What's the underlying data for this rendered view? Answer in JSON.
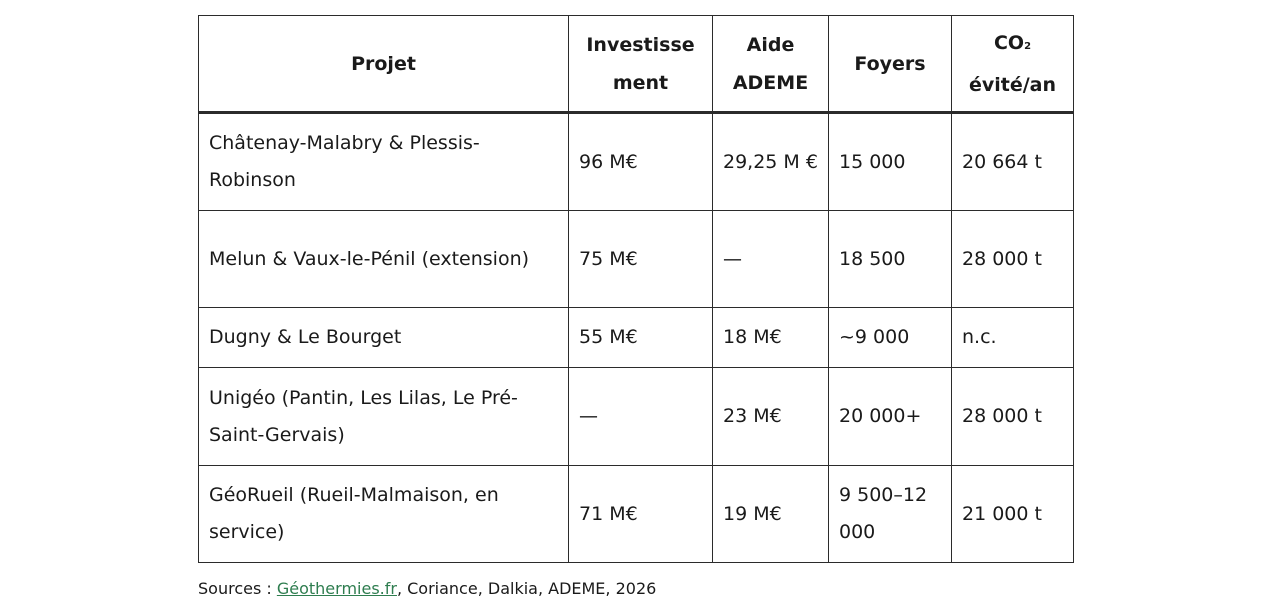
{
  "table": {
    "headers": {
      "project": "Projet",
      "investment_line1": "Investisse",
      "investment_line2": "ment",
      "aid_line1": "Aide",
      "aid_line2": "ADEME",
      "households": "Foyers",
      "co2_main": "CO",
      "co2_sub": "2",
      "co2_line2": "évité/an"
    },
    "rows": [
      {
        "project": "Châtenay-Malabry & Plessis-Robinson",
        "investment": "96 M€",
        "aid": "29,25 M €",
        "households": "15 000",
        "co2": "20 664 t"
      },
      {
        "project": "Melun & Vaux-le-Pénil (extension)",
        "investment": "75 M€",
        "aid": "—",
        "households": "18 500",
        "co2": "28 000 t"
      },
      {
        "project": "Dugny & Le Bourget",
        "investment": "55 M€",
        "aid": "18 M€",
        "households": "~9 000",
        "co2": "n.c."
      },
      {
        "project": "Unigéo (Pantin, Les Lilas, Le Pré-Saint-Gervais)",
        "investment": "—",
        "aid": "23 M€",
        "households": "20 000+",
        "co2": "28 000 t"
      },
      {
        "project": "GéoRueil (Rueil-Malmaison, en service)",
        "investment": "71 M€",
        "aid": "19 M€",
        "households": "9 500–12 000",
        "co2": "21 000 t"
      }
    ]
  },
  "sources": {
    "prefix": "Sources : ",
    "link_text": "Géothermies.fr",
    "suffix": ", Coriance, Dalkia, ADEME, 2026"
  }
}
